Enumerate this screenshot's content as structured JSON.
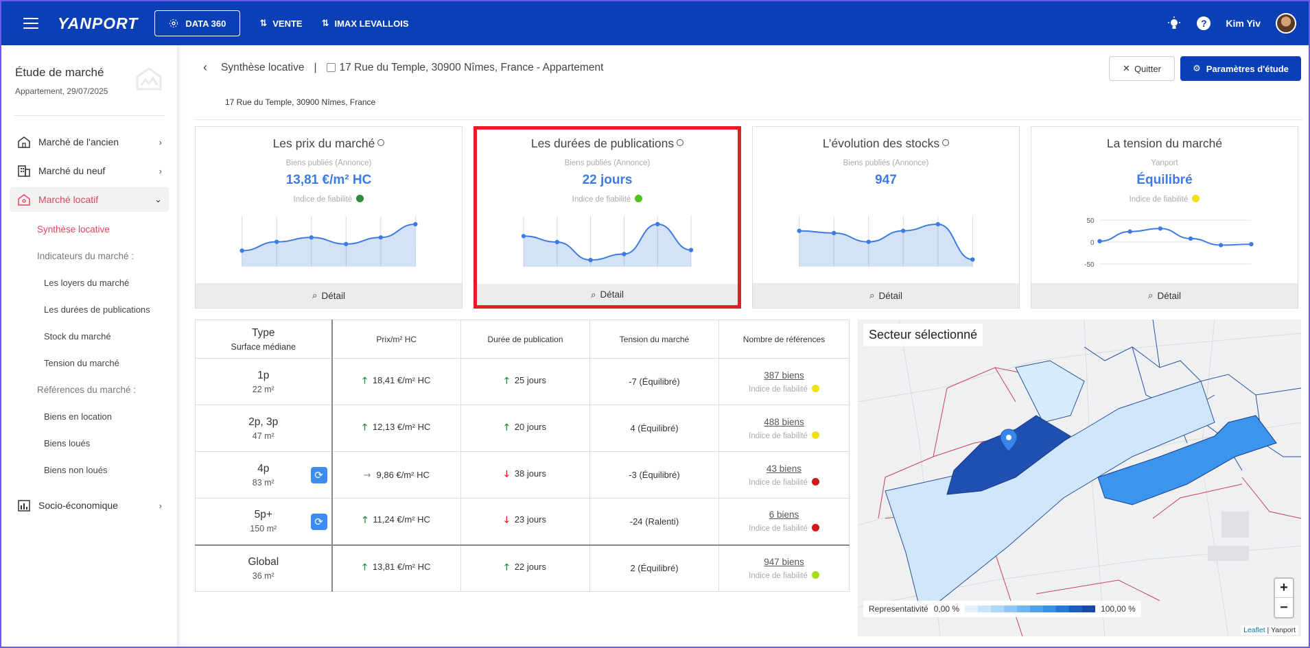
{
  "header": {
    "logo": "YANPORT",
    "nav": {
      "data360": "DATA 360",
      "vente": "VENTE",
      "imax": "IMAX LEVALLOIS"
    },
    "help": "?",
    "user": "Kim Yiv"
  },
  "sidebar": {
    "title": "Étude de marché",
    "subtitle": "Appartement, 29/07/2025",
    "items": {
      "ancien": "Marché de l'ancien",
      "neuf": "Marché du neuf",
      "locatif": "Marché locatif",
      "socio": "Socio-économique"
    },
    "sub": {
      "synthese": "Synthèse locative",
      "indicateurs": "Indicateurs du marché :",
      "loyers": "Les loyers du marché",
      "durees": "Les durées de publications",
      "stock": "Stock du marché",
      "tension": "Tension du marché",
      "references": "Références du marché :",
      "location": "Biens en location",
      "loues": "Biens loués",
      "nonloues": "Biens non loués"
    }
  },
  "main": {
    "breadcrumb": "Synthèse locative",
    "separator": "|",
    "address_title": "17 Rue du Temple, 30900 Nîmes, France - Appartement",
    "address_sub": "17 Rue du Temple, 30900 Nîmes, France",
    "quit_label": "Quitter",
    "params_label": "Paramètres d'étude"
  },
  "cards": [
    {
      "title": "Les prix du marché",
      "source": "Biens publiés (Annonce)",
      "value": "13,81 €/m² HC",
      "reliability": "Indice de fiabilité",
      "dot_color": "#2e8b3d",
      "detail": "Détail",
      "spark": [
        3,
        5,
        6,
        4.5,
        6,
        9
      ]
    },
    {
      "title": "Les durées de publications",
      "source": "Biens publiés (Annonce)",
      "value": "22 jours",
      "reliability": "Indice de fiabilité",
      "dot_color": "#4cc41f",
      "detail": "Détail",
      "spark": [
        7,
        5.5,
        1,
        2.5,
        10,
        3.5
      ]
    },
    {
      "title": "L’évolution des stocks",
      "source": "Biens publiés (Annonce)",
      "value": "947",
      "reliability": "",
      "dot_color": "",
      "detail": "Détail",
      "spark": [
        7.5,
        7,
        5,
        7.5,
        9,
        1
      ]
    },
    {
      "title": "La tension du marché",
      "source": "Yanport",
      "value": "Équilibré",
      "reliability": "Indice de fiabilité",
      "dot_color": "#f0e014",
      "detail": "Détail",
      "spark": [
        2,
        24,
        31,
        8,
        -7,
        -5
      ],
      "y_ticks": [
        "50",
        "0",
        "-50"
      ]
    }
  ],
  "table": {
    "headers": {
      "type": "Type",
      "type_sub": "Surface médiane",
      "prix": "Prix/m² HC",
      "duree": "Durée de publication",
      "tension": "Tension du marché",
      "refs": "Nombre de références"
    },
    "rows": [
      {
        "type": "1p",
        "surface": "22 m²",
        "prix": "18,41 €/m² HC",
        "prix_trend": "up",
        "duree": "25 jours",
        "duree_trend": "up",
        "tension": "-7 (Équilibré)",
        "refs": "387 biens",
        "rel": "Indice de fiabilité",
        "dot": "#f0e014",
        "refresh": false
      },
      {
        "type": "2p, 3p",
        "surface": "47 m²",
        "prix": "12,13 €/m² HC",
        "prix_trend": "up",
        "duree": "20 jours",
        "duree_trend": "up",
        "tension": "4 (Équilibré)",
        "refs": "488 biens",
        "rel": "Indice de fiabilité",
        "dot": "#f0e014",
        "refresh": false
      },
      {
        "type": "4p",
        "surface": "83 m²",
        "prix": "9,86 €/m² HC",
        "prix_trend": "flat",
        "duree": "38 jours",
        "duree_trend": "down",
        "tension": "-3 (Équilibré)",
        "refs": "43 biens",
        "rel": "Indice de fiabilité",
        "dot": "#d01818",
        "refresh": true
      },
      {
        "type": "5p+",
        "surface": "150 m²",
        "prix": "11,24 €/m² HC",
        "prix_trend": "up",
        "duree": "23 jours",
        "duree_trend": "down",
        "tension": "-24 (Ralenti)",
        "refs": "6 biens",
        "rel": "Indice de fiabilité",
        "dot": "#d01818",
        "refresh": true
      }
    ],
    "global": {
      "type": "Global",
      "surface": "36 m²",
      "prix": "13,81 €/m² HC",
      "prix_trend": "up",
      "duree": "22 jours",
      "duree_trend": "up",
      "tension": "2 (Équilibré)",
      "refs": "947 biens",
      "rel": "Indice de fiabilité",
      "dot": "#a7dc1a"
    }
  },
  "map": {
    "title": "Secteur sélectionné",
    "legend_label": "Representativité",
    "legend_min": "0,00 %",
    "legend_max": "100,00 %",
    "legend_colors": [
      "#e4f2fd",
      "#c9e4fb",
      "#aed7f9",
      "#8fc8f6",
      "#6fb6f2",
      "#4fa3ec",
      "#3690e3",
      "#2478d6",
      "#1a60c4",
      "#1848a8"
    ],
    "zoom_in": "+",
    "zoom_out": "−",
    "attrib_leaflet": "Leaflet",
    "attrib_sep": " | ",
    "attrib_yanport": "Yanport"
  }
}
